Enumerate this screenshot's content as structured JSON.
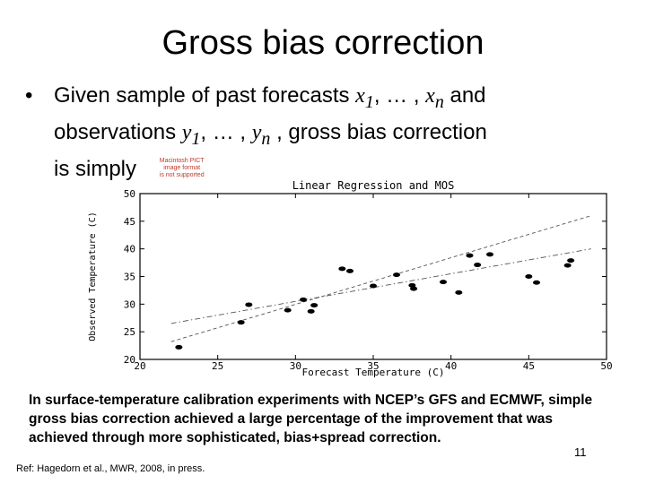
{
  "slide": {
    "title": "Gross bias correction",
    "bullet": "•",
    "line1": {
      "pre": "Given sample of past forecasts ",
      "x1": "x",
      "sub1": "1",
      "mid": ", … , ",
      "xn": "x",
      "subn": "n",
      "post": " and"
    },
    "line2": {
      "pre": "observations ",
      "y1": "y",
      "sub1": "1",
      "mid": ", … , ",
      "yn": "y",
      "subn": "n",
      "post": " , gross bias correction"
    },
    "line3": {
      "pre": "is simply"
    },
    "pict_placeholder": {
      "l1": "Macintosh PICT",
      "l2": "image format",
      "l3": "is not supported"
    },
    "caption": "In surface-temperature calibration experiments with NCEP’s GFS and ECMWF, simple gross bias correction achieved a large percentage of the improvement that was achieved through more sophisticated, bias+spread correction.",
    "page_number": "11",
    "reference": "Ref: Hagedorn et al., MWR, 2008, in press."
  },
  "chart_data": {
    "type": "scatter",
    "title": "Linear Regression and MOS",
    "xlabel": "Forecast Temperature (C)",
    "ylabel": "Observed Temperature (C)",
    "xlim": [
      20,
      50
    ],
    "ylim": [
      20,
      50
    ],
    "xticks": [
      "20",
      "25",
      "30",
      "35",
      "40",
      "45",
      "50"
    ],
    "yticks": [
      "20",
      "25",
      "30",
      "35",
      "40",
      "45",
      "50"
    ],
    "points": [
      [
        22.5,
        22.2
      ],
      [
        26.5,
        26.7
      ],
      [
        27.0,
        29.9
      ],
      [
        29.5,
        28.9
      ],
      [
        30.5,
        30.8
      ],
      [
        31.0,
        28.7
      ],
      [
        31.2,
        29.8
      ],
      [
        33.0,
        36.4
      ],
      [
        33.5,
        36.0
      ],
      [
        35.0,
        33.3
      ],
      [
        36.5,
        35.3
      ],
      [
        37.5,
        33.4
      ],
      [
        37.6,
        32.8
      ],
      [
        39.5,
        34.0
      ],
      [
        40.5,
        32.1
      ],
      [
        41.2,
        38.8
      ],
      [
        41.7,
        37.1
      ],
      [
        42.5,
        39.0
      ],
      [
        45.0,
        35.0
      ],
      [
        45.5,
        33.9
      ],
      [
        47.5,
        37.0
      ],
      [
        47.7,
        37.9
      ]
    ],
    "lines": [
      {
        "style": "dashed",
        "from": [
          22,
          23.2
        ],
        "to": [
          49,
          46
        ]
      },
      {
        "style": "dashdot",
        "from": [
          22,
          26.5
        ],
        "to": [
          49,
          40
        ]
      }
    ],
    "grid": false
  }
}
